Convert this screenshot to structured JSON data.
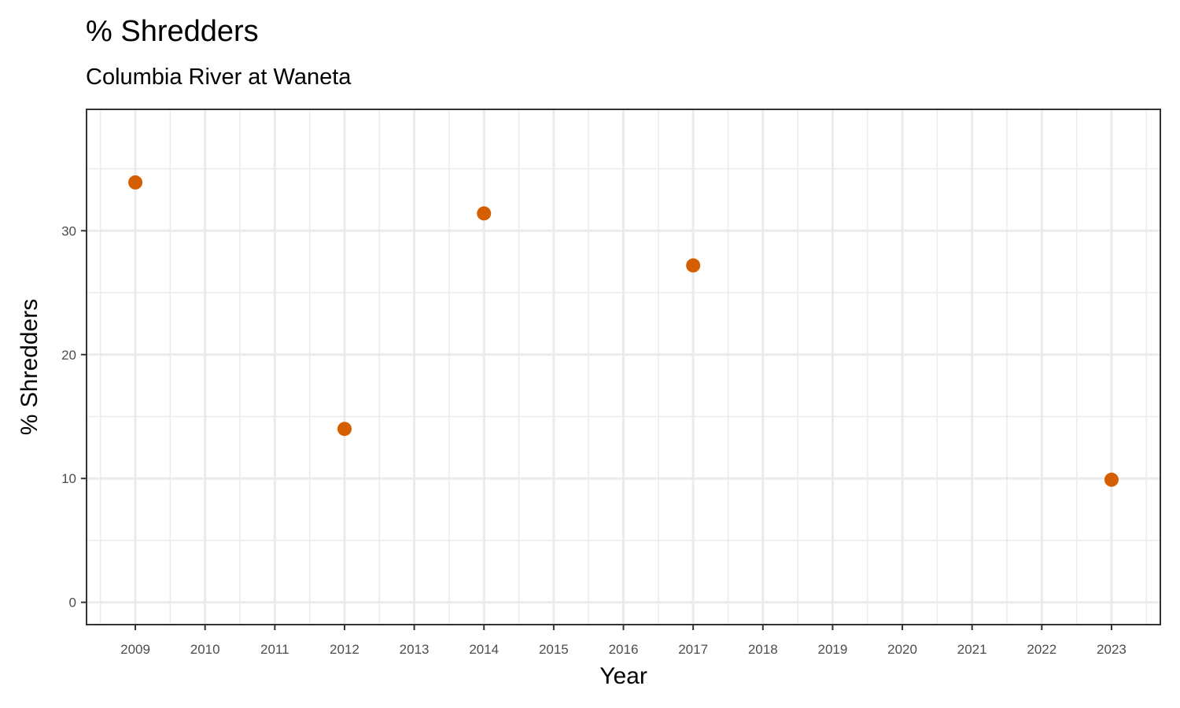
{
  "chart_data": {
    "type": "scatter",
    "title": "% Shredders",
    "subtitle": "Columbia River at Waneta",
    "xlabel": "Year",
    "ylabel": "% Shredders",
    "x_ticks": [
      "2009",
      "2010",
      "2011",
      "2012",
      "2013",
      "2014",
      "2015",
      "2016",
      "2017",
      "2018",
      "2019",
      "2020",
      "2021",
      "2022",
      "2023"
    ],
    "y_ticks": [
      "0",
      "10",
      "20",
      "30"
    ],
    "xlim": [
      2008.3,
      2023.7
    ],
    "ylim": [
      -1.8,
      39.8
    ],
    "grid": true,
    "point_color": "#D55E00",
    "series": [
      {
        "x": [
          2009,
          2012,
          2014,
          2017,
          2023
        ],
        "y": [
          33.9,
          14.0,
          31.4,
          27.2,
          9.9
        ]
      }
    ]
  }
}
